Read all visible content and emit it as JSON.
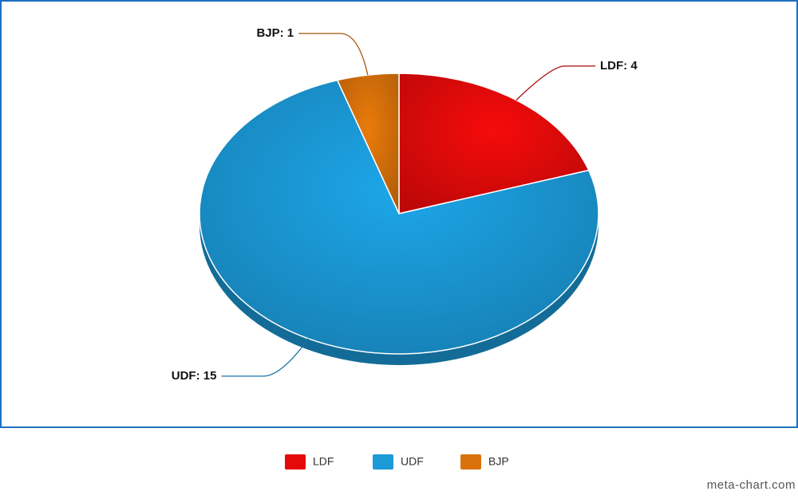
{
  "chart_data": {
    "type": "pie",
    "categories": [
      "LDF",
      "UDF",
      "BJP"
    ],
    "values": [
      4,
      15,
      1
    ],
    "value_labels": [
      "LDF: 4",
      "UDF: 15",
      "BJP: 1"
    ],
    "colors": [
      "#e50a0a",
      "#1b9ad8",
      "#d9720a"
    ],
    "watermark": "meta-chart.com"
  }
}
